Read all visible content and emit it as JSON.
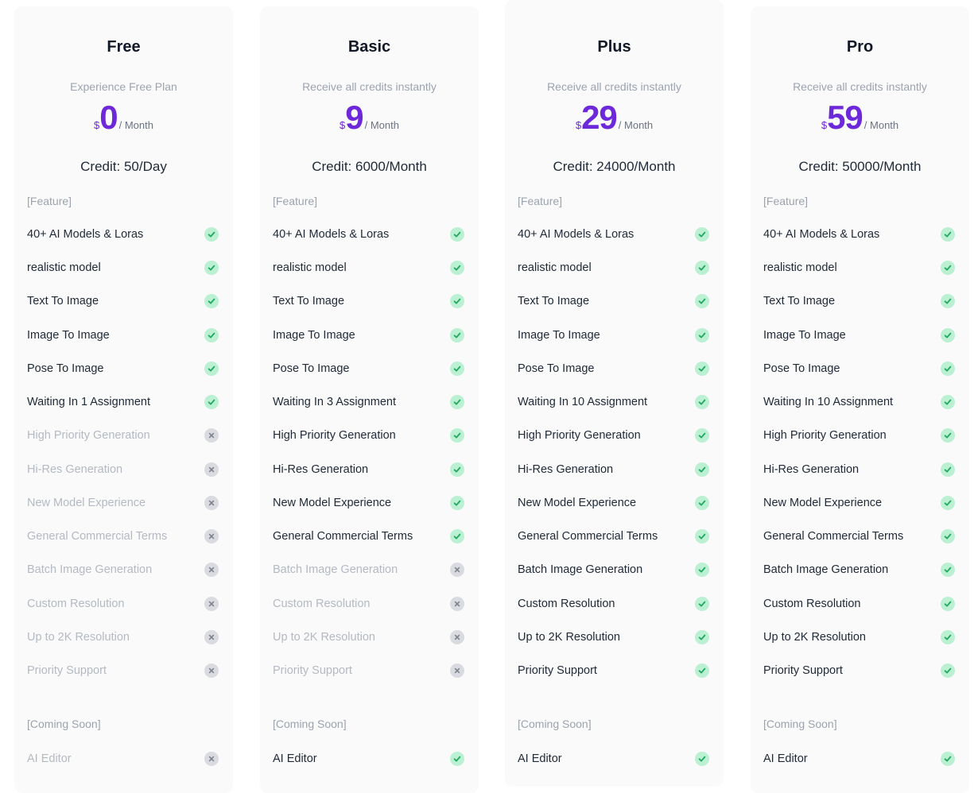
{
  "plans": [
    {
      "name": "Free",
      "subtitle": "Experience Free Plan",
      "currency": "$",
      "price": "0",
      "period": "/ Month",
      "credit": "Credit: 50/Day",
      "features_header": "[Feature]",
      "features": [
        {
          "label": "40+ AI Models & Loras",
          "included": true
        },
        {
          "label": "realistic model",
          "included": true
        },
        {
          "label": "Text To Image",
          "included": true
        },
        {
          "label": "Image To Image",
          "included": true
        },
        {
          "label": "Pose To Image",
          "included": true
        },
        {
          "label": "Waiting In 1 Assignment",
          "included": true
        },
        {
          "label": "High Priority Generation",
          "included": false
        },
        {
          "label": "Hi-Res Generation",
          "included": false
        },
        {
          "label": "New Model Experience",
          "included": false
        },
        {
          "label": "General Commercial Terms",
          "included": false
        },
        {
          "label": "Batch Image Generation",
          "included": false
        },
        {
          "label": "Custom Resolution",
          "included": false
        },
        {
          "label": "Up to 2K Resolution",
          "included": false
        },
        {
          "label": "Priority Support",
          "included": false
        }
      ],
      "coming_soon_header": "[Coming Soon]",
      "coming_soon": [
        {
          "label": "AI Editor",
          "included": false
        }
      ]
    },
    {
      "name": "Basic",
      "subtitle": "Receive all credits instantly",
      "currency": "$",
      "price": "9",
      "period": "/ Month",
      "credit": "Credit: 6000/Month",
      "features_header": "[Feature]",
      "features": [
        {
          "label": "40+ AI Models & Loras",
          "included": true
        },
        {
          "label": "realistic model",
          "included": true
        },
        {
          "label": "Text To Image",
          "included": true
        },
        {
          "label": "Image To Image",
          "included": true
        },
        {
          "label": "Pose To Image",
          "included": true
        },
        {
          "label": "Waiting In 3 Assignment",
          "included": true
        },
        {
          "label": "High Priority Generation",
          "included": true
        },
        {
          "label": "Hi-Res Generation",
          "included": true
        },
        {
          "label": "New Model Experience",
          "included": true
        },
        {
          "label": "General Commercial Terms",
          "included": true
        },
        {
          "label": "Batch Image Generation",
          "included": false
        },
        {
          "label": "Custom Resolution",
          "included": false
        },
        {
          "label": "Up to 2K Resolution",
          "included": false
        },
        {
          "label": "Priority Support",
          "included": false
        }
      ],
      "coming_soon_header": "[Coming Soon]",
      "coming_soon": [
        {
          "label": "AI Editor",
          "included": true
        }
      ]
    },
    {
      "name": "Plus",
      "subtitle": "Receive all credits instantly",
      "currency": "$",
      "price": "29",
      "period": "/ Month",
      "credit": "Credit: 24000/Month",
      "features_header": "[Feature]",
      "features": [
        {
          "label": "40+ AI Models & Loras",
          "included": true
        },
        {
          "label": "realistic model",
          "included": true
        },
        {
          "label": "Text To Image",
          "included": true
        },
        {
          "label": "Image To Image",
          "included": true
        },
        {
          "label": "Pose To Image",
          "included": true
        },
        {
          "label": "Waiting In 10 Assignment",
          "included": true
        },
        {
          "label": "High Priority Generation",
          "included": true
        },
        {
          "label": "Hi-Res Generation",
          "included": true
        },
        {
          "label": "New Model Experience",
          "included": true
        },
        {
          "label": "General Commercial Terms",
          "included": true
        },
        {
          "label": "Batch Image Generation",
          "included": true
        },
        {
          "label": "Custom Resolution",
          "included": true
        },
        {
          "label": "Up to 2K Resolution",
          "included": true
        },
        {
          "label": "Priority Support",
          "included": true
        }
      ],
      "coming_soon_header": "[Coming Soon]",
      "coming_soon": [
        {
          "label": "AI Editor",
          "included": true
        }
      ]
    },
    {
      "name": "Pro",
      "subtitle": "Receive all credits instantly",
      "currency": "$",
      "price": "59",
      "period": "/ Month",
      "credit": "Credit: 50000/Month",
      "features_header": "[Feature]",
      "features": [
        {
          "label": "40+ AI Models & Loras",
          "included": true
        },
        {
          "label": "realistic model",
          "included": true
        },
        {
          "label": "Text To Image",
          "included": true
        },
        {
          "label": "Image To Image",
          "included": true
        },
        {
          "label": "Pose To Image",
          "included": true
        },
        {
          "label": "Waiting In 10 Assignment",
          "included": true
        },
        {
          "label": "High Priority Generation",
          "included": true
        },
        {
          "label": "Hi-Res Generation",
          "included": true
        },
        {
          "label": "New Model Experience",
          "included": true
        },
        {
          "label": "General Commercial Terms",
          "included": true
        },
        {
          "label": "Batch Image Generation",
          "included": true
        },
        {
          "label": "Custom Resolution",
          "included": true
        },
        {
          "label": "Up to 2K Resolution",
          "included": true
        },
        {
          "label": "Priority Support",
          "included": true
        }
      ],
      "coming_soon_header": "[Coming Soon]",
      "coming_soon": [
        {
          "label": "AI Editor",
          "included": true
        }
      ]
    }
  ],
  "icons": {
    "included": "check-circle-icon",
    "excluded": "x-circle-icon"
  },
  "colors": {
    "accent": "#6d28d9",
    "check_bg": "#bbf0d3",
    "check_fg": "#22a861",
    "x_bg": "#d9dbe0",
    "x_fg": "#7d828c"
  }
}
